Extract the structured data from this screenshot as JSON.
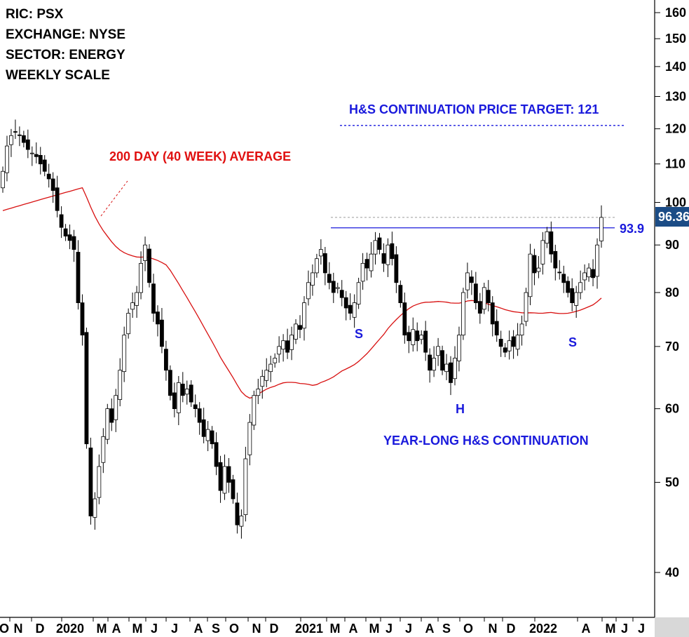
{
  "info": {
    "ric": "RIC: PSX",
    "exchange": "EXCHANGE: NYSE",
    "sector": "SECTOR: ENERGY",
    "scale": "WEEKLY SCALE"
  },
  "annotations": {
    "target": "H&S CONTINUATION PRICE TARGET: 121",
    "ma": "200 DAY (40 WEEK) AVERAGE",
    "pattern": "YEAR-LONG H&S CONTINUATION",
    "s_left": "S",
    "head": "H",
    "s_right": "S",
    "neckline_label": "93.9",
    "last_price": "96.36"
  },
  "colors": {
    "neckline": "#1a1adc",
    "moving_average": "#d81010",
    "candle_up": "#ffffff",
    "candle_down": "#000000",
    "last_price_box": "#1b4c86"
  },
  "chart_data": {
    "type": "candlestick",
    "scale": "log",
    "ylim": [
      35,
      165
    ],
    "y_ticks": [
      40,
      50,
      60,
      70,
      80,
      90,
      100,
      110,
      120,
      130,
      140,
      150,
      160
    ],
    "x_ticks": [
      "O",
      "N",
      "D",
      "2020",
      "M",
      "A",
      "M",
      "J",
      "J",
      "A",
      "S",
      "O",
      "N",
      "D",
      "2021",
      "M",
      "A",
      "M",
      "J",
      "J",
      "A",
      "S",
      "O",
      "N",
      "D",
      "2022",
      "A",
      "M",
      "J",
      "J"
    ],
    "neckline": 93.9,
    "price_target": 121,
    "last_price": 96.36,
    "close": [
      108,
      115,
      118,
      119,
      118,
      116,
      114,
      113,
      112,
      110,
      108,
      106,
      103,
      98,
      94,
      92,
      91,
      89,
      78,
      72,
      55,
      46,
      48,
      52,
      56,
      60,
      58,
      62,
      66,
      72,
      76,
      78,
      80,
      86,
      90,
      82,
      76,
      74,
      70,
      66,
      62,
      60,
      64,
      62,
      63,
      61,
      60,
      58,
      56,
      57,
      55,
      52,
      49,
      52,
      50,
      48,
      45,
      46,
      53,
      58,
      62,
      63,
      65,
      66,
      67,
      68,
      70,
      71,
      69,
      72,
      74,
      73,
      78,
      82,
      84,
      87,
      89,
      84,
      82,
      80,
      81,
      79,
      77,
      76,
      78,
      82,
      86,
      85,
      88,
      91,
      89,
      86,
      90,
      87,
      82,
      78,
      72,
      71,
      73,
      71,
      72,
      69,
      66,
      68,
      70,
      66,
      67,
      64,
      68,
      72,
      80,
      84,
      82,
      78,
      76,
      81,
      78,
      74,
      72,
      70,
      69,
      71,
      70,
      72,
      74,
      80,
      88,
      84,
      85,
      91,
      93,
      88,
      85,
      84,
      82,
      80,
      78,
      80,
      82,
      84,
      85,
      83,
      90,
      96.36
    ]
  }
}
